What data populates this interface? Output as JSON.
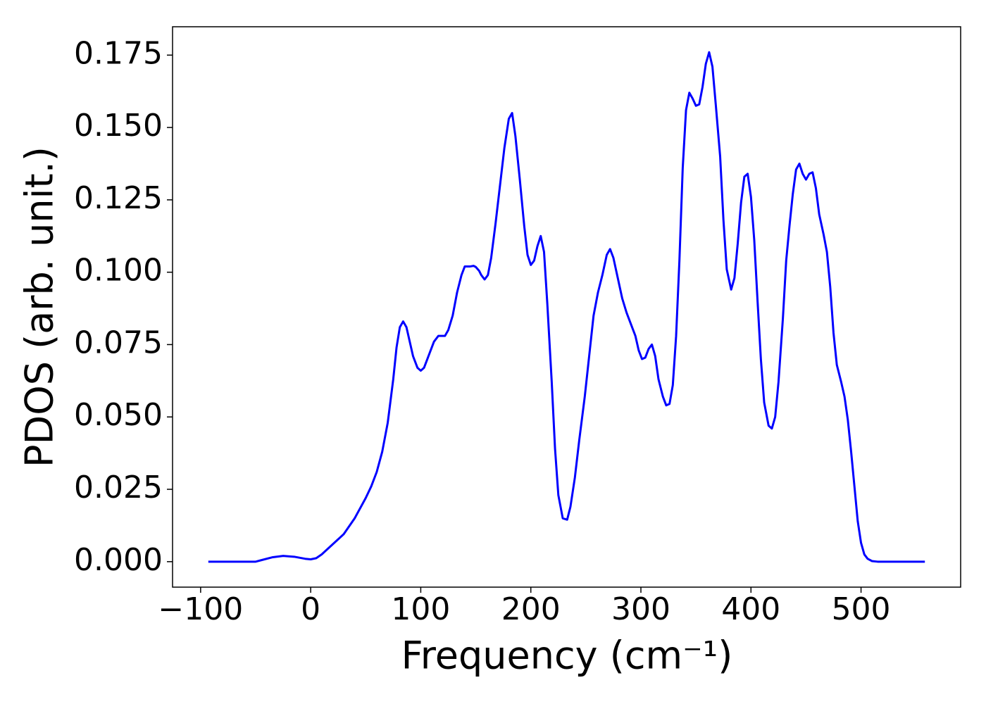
{
  "chart_data": {
    "type": "line",
    "x_label": "Frequency (cm⁻¹)",
    "y_label": "PDOS (arb. unit.)",
    "color": "#0000ff",
    "xlim": [
      -125.5,
      590.5
    ],
    "ylim": [
      -0.0088,
      0.1848
    ],
    "xticks": [
      {
        "value": -100,
        "label": "−100"
      },
      0,
      100,
      200,
      300,
      400,
      500
    ],
    "yticks": [
      {
        "value": 0,
        "label": "0.000"
      },
      {
        "value": 0.025,
        "label": "0.025"
      },
      {
        "value": 0.05,
        "label": "0.050"
      },
      {
        "value": 0.075,
        "label": "0.075"
      },
      {
        "value": 0.1,
        "label": "0.100"
      },
      {
        "value": 0.125,
        "label": "0.125"
      },
      {
        "value": 0.15,
        "label": "0.150"
      },
      {
        "value": 0.175,
        "label": "0.175"
      }
    ],
    "x": [
      -93,
      -50,
      -45,
      -35,
      -25,
      -15,
      -5,
      0,
      5,
      10,
      20,
      30,
      40,
      50,
      55,
      60,
      65,
      70,
      75,
      78,
      81,
      84,
      87,
      90,
      93,
      97,
      100,
      103,
      107,
      112,
      116,
      122,
      125,
      129,
      133,
      137,
      140,
      145,
      148,
      150,
      153,
      155,
      158,
      161,
      164,
      168,
      172,
      176,
      180,
      183,
      186,
      190,
      194,
      197,
      200,
      203,
      206,
      209,
      212,
      215,
      219,
      222,
      225,
      229,
      233,
      236,
      240,
      244,
      249,
      253,
      257,
      261,
      265,
      269,
      272,
      275,
      279,
      283,
      287,
      291,
      295,
      298,
      301,
      304,
      307,
      310,
      313,
      316,
      320,
      323,
      326,
      329,
      332,
      335,
      338,
      341,
      344,
      347,
      350,
      353,
      356,
      359,
      362,
      365,
      368,
      372,
      375,
      378,
      382,
      385,
      388,
      391,
      394,
      397,
      400,
      403,
      406,
      409,
      412,
      416,
      419,
      422,
      425,
      429,
      432,
      435,
      438,
      441,
      444,
      447,
      450,
      453,
      456,
      459,
      462,
      466,
      469,
      472,
      475,
      478,
      482,
      485,
      488,
      491,
      494,
      497,
      500,
      503,
      506,
      510,
      515,
      558
    ],
    "values": [
      0,
      0,
      0.0005,
      0.0015,
      0.002,
      0.0017,
      0.001,
      0.0008,
      0.0012,
      0.0025,
      0.006,
      0.0095,
      0.015,
      0.022,
      0.026,
      0.031,
      0.038,
      0.048,
      0.063,
      0.074,
      0.081,
      0.083,
      0.081,
      0.076,
      0.071,
      0.067,
      0.066,
      0.067,
      0.071,
      0.076,
      0.078,
      0.078,
      0.08,
      0.085,
      0.093,
      0.099,
      0.102,
      0.102,
      0.1022,
      0.1018,
      0.1005,
      0.099,
      0.0975,
      0.099,
      0.105,
      0.117,
      0.13,
      0.143,
      0.153,
      0.155,
      0.147,
      0.132,
      0.116,
      0.106,
      0.1025,
      0.104,
      0.109,
      0.1125,
      0.107,
      0.089,
      0.062,
      0.039,
      0.023,
      0.015,
      0.0145,
      0.019,
      0.029,
      0.042,
      0.057,
      0.071,
      0.085,
      0.093,
      0.099,
      0.106,
      0.108,
      0.105,
      0.098,
      0.091,
      0.086,
      0.082,
      0.078,
      0.073,
      0.07,
      0.0705,
      0.0735,
      0.075,
      0.071,
      0.063,
      0.057,
      0.054,
      0.0545,
      0.061,
      0.078,
      0.104,
      0.136,
      0.156,
      0.162,
      0.16,
      0.1575,
      0.158,
      0.164,
      0.172,
      0.176,
      0.171,
      0.158,
      0.14,
      0.118,
      0.101,
      0.094,
      0.098,
      0.11,
      0.124,
      0.133,
      0.134,
      0.126,
      0.111,
      0.09,
      0.07,
      0.055,
      0.047,
      0.046,
      0.05,
      0.062,
      0.084,
      0.104,
      0.116,
      0.127,
      0.1355,
      0.1375,
      0.134,
      0.132,
      0.134,
      0.1345,
      0.129,
      0.12,
      0.113,
      0.107,
      0.095,
      0.079,
      0.068,
      0.062,
      0.057,
      0.049,
      0.038,
      0.026,
      0.014,
      0.0065,
      0.0025,
      0.001,
      0.0002,
      0,
      0
    ]
  }
}
